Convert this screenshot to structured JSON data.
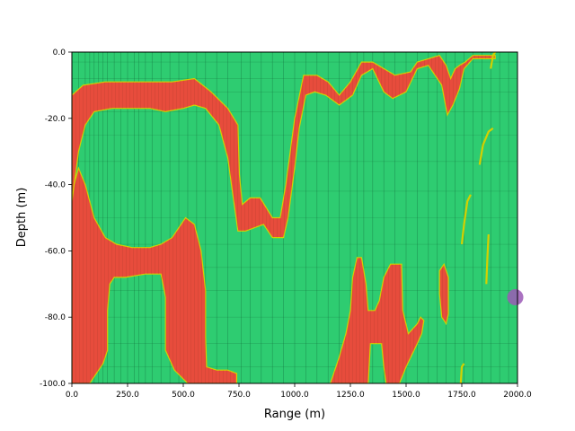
{
  "chart_data": {
    "type": "heatmap",
    "title": "",
    "xlabel": "Range (m)",
    "ylabel": "Depth (m)",
    "xlim": [
      0,
      2000
    ],
    "ylim": [
      -100,
      0
    ],
    "x_ticks": [
      0,
      250,
      500,
      750,
      1000,
      1250,
      1500,
      1750,
      2000
    ],
    "x_tick_labels": [
      "0.0",
      "250.0",
      "500.0",
      "750.0",
      "1000.0",
      "1250.0",
      "1500.0",
      "1750.0",
      "2000.0"
    ],
    "y_ticks": [
      0,
      -20,
      -40,
      -60,
      -80,
      -100
    ],
    "y_tick_labels": [
      "0.0",
      "-20.0",
      "-40.0",
      "-60.0",
      "-80.0",
      "-100.0"
    ],
    "grid": false,
    "colors": {
      "background_region": "#2ecc71",
      "high_region": "#e74c3c",
      "boundary": "#d4d000",
      "marker": "#9b59b6"
    },
    "regions": [
      {
        "label": "upper band",
        "points": [
          [
            0,
            -13
          ],
          [
            50,
            -10
          ],
          [
            150,
            -9
          ],
          [
            250,
            -9
          ],
          [
            350,
            -9
          ],
          [
            450,
            -9
          ],
          [
            550,
            -8
          ],
          [
            625,
            -12
          ],
          [
            700,
            -17
          ],
          [
            745,
            -22
          ],
          [
            752,
            -37
          ],
          [
            765,
            -46
          ],
          [
            800,
            -44
          ],
          [
            845,
            -44
          ],
          [
            900,
            -50
          ],
          [
            935,
            -50
          ],
          [
            960,
            -40
          ],
          [
            1000,
            -20
          ],
          [
            1040,
            -7
          ],
          [
            1100,
            -7
          ],
          [
            1150,
            -9
          ],
          [
            1200,
            -13
          ],
          [
            1250,
            -9
          ],
          [
            1300,
            -3
          ],
          [
            1350,
            -3
          ],
          [
            1450,
            -7
          ],
          [
            1520,
            -6
          ],
          [
            1550,
            -3
          ],
          [
            1600,
            -2
          ],
          [
            1650,
            -1
          ],
          [
            1680,
            -4
          ],
          [
            1700,
            -8
          ],
          [
            1720,
            -5
          ],
          [
            1740,
            -4
          ],
          [
            1765,
            -3
          ],
          [
            1800,
            -1
          ],
          [
            1850,
            -1
          ],
          [
            1900,
            -1
          ],
          [
            1900,
            -2
          ],
          [
            1850,
            -2
          ],
          [
            1800,
            -2
          ],
          [
            1760,
            -5
          ],
          [
            1740,
            -11
          ],
          [
            1710,
            -16
          ],
          [
            1685,
            -19
          ],
          [
            1660,
            -10
          ],
          [
            1600,
            -4
          ],
          [
            1550,
            -5
          ],
          [
            1500,
            -12
          ],
          [
            1440,
            -14
          ],
          [
            1400,
            -12
          ],
          [
            1350,
            -5
          ],
          [
            1300,
            -7
          ],
          [
            1260,
            -13
          ],
          [
            1200,
            -16
          ],
          [
            1140,
            -13
          ],
          [
            1090,
            -12
          ],
          [
            1050,
            -13
          ],
          [
            1020,
            -23
          ],
          [
            1000,
            -35
          ],
          [
            970,
            -50
          ],
          [
            950,
            -56
          ],
          [
            900,
            -56
          ],
          [
            860,
            -52
          ],
          [
            820,
            -53
          ],
          [
            780,
            -54
          ],
          [
            745,
            -54
          ],
          [
            720,
            -42
          ],
          [
            700,
            -32
          ],
          [
            660,
            -22
          ],
          [
            600,
            -17
          ],
          [
            550,
            -16
          ],
          [
            500,
            -17
          ],
          [
            420,
            -18
          ],
          [
            350,
            -17
          ],
          [
            250,
            -17
          ],
          [
            180,
            -17
          ],
          [
            100,
            -18
          ],
          [
            60,
            -22
          ],
          [
            30,
            -30
          ],
          [
            10,
            -40
          ],
          [
            0,
            -45
          ]
        ]
      },
      {
        "label": "lower left region",
        "points": [
          [
            0,
            -45
          ],
          [
            10,
            -40
          ],
          [
            30,
            -35
          ],
          [
            60,
            -40
          ],
          [
            100,
            -50
          ],
          [
            150,
            -56
          ],
          [
            200,
            -58
          ],
          [
            270,
            -59
          ],
          [
            350,
            -59
          ],
          [
            400,
            -58
          ],
          [
            450,
            -56
          ],
          [
            510,
            -50
          ],
          [
            550,
            -52
          ],
          [
            580,
            -60
          ],
          [
            600,
            -72
          ],
          [
            600,
            -86
          ],
          [
            605,
            -95
          ],
          [
            650,
            -96
          ],
          [
            700,
            -96
          ],
          [
            740,
            -97
          ],
          [
            740,
            -100
          ],
          [
            520,
            -100
          ],
          [
            460,
            -96
          ],
          [
            420,
            -90
          ],
          [
            420,
            -74
          ],
          [
            400,
            -67
          ],
          [
            330,
            -67
          ],
          [
            240,
            -68
          ],
          [
            190,
            -68
          ],
          [
            170,
            -70
          ],
          [
            160,
            -78
          ],
          [
            160,
            -90
          ],
          [
            140,
            -94
          ],
          [
            80,
            -100
          ],
          [
            0,
            -100
          ]
        ]
      },
      {
        "label": "right lower lobe",
        "points": [
          [
            1160,
            -100
          ],
          [
            1200,
            -92
          ],
          [
            1230,
            -85
          ],
          [
            1250,
            -78
          ],
          [
            1260,
            -68
          ],
          [
            1280,
            -62
          ],
          [
            1300,
            -62
          ],
          [
            1320,
            -70
          ],
          [
            1330,
            -78
          ],
          [
            1360,
            -78
          ],
          [
            1380,
            -75
          ],
          [
            1400,
            -68
          ],
          [
            1430,
            -64
          ],
          [
            1480,
            -64
          ],
          [
            1485,
            -78
          ],
          [
            1510,
            -85
          ],
          [
            1550,
            -82
          ],
          [
            1565,
            -80
          ],
          [
            1580,
            -81
          ],
          [
            1570,
            -85
          ],
          [
            1550,
            -88
          ],
          [
            1500,
            -95
          ],
          [
            1470,
            -100
          ],
          [
            1410,
            -100
          ],
          [
            1400,
            -95
          ],
          [
            1390,
            -88
          ],
          [
            1340,
            -88
          ],
          [
            1330,
            -100
          ]
        ]
      },
      {
        "label": "right isolated pocket",
        "points": [
          [
            1650,
            -66
          ],
          [
            1670,
            -64
          ],
          [
            1690,
            -68
          ],
          [
            1690,
            -79
          ],
          [
            1680,
            -82
          ],
          [
            1660,
            -80
          ],
          [
            1650,
            -73
          ]
        ]
      }
    ],
    "boundary_streaks": [
      {
        "points": [
          [
            1830,
            -34
          ],
          [
            1845,
            -28
          ],
          [
            1870,
            -24
          ],
          [
            1890,
            -23
          ]
        ]
      },
      {
        "points": [
          [
            1750,
            -58
          ],
          [
            1760,
            -52
          ],
          [
            1775,
            -45
          ],
          [
            1790,
            -43
          ]
        ]
      },
      {
        "points": [
          [
            1860,
            -70
          ],
          [
            1865,
            -62
          ],
          [
            1870,
            -55
          ]
        ]
      },
      {
        "points": [
          [
            1745,
            -100
          ],
          [
            1750,
            -95
          ],
          [
            1760,
            -94
          ]
        ]
      },
      {
        "points": [
          [
            1880,
            -5
          ],
          [
            1890,
            -1
          ],
          [
            1900,
            0
          ]
        ]
      }
    ],
    "marker": {
      "x": 1990,
      "y": -74
    }
  }
}
